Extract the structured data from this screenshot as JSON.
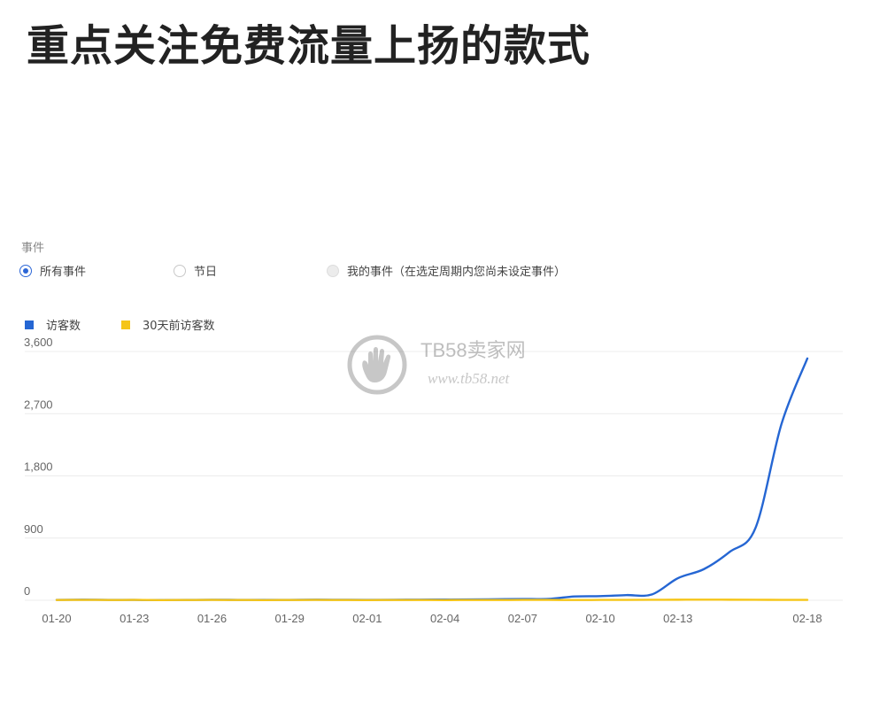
{
  "title": "重点关注免费流量上扬的款式",
  "filter": {
    "label": "事件",
    "options": [
      {
        "label": "所有事件",
        "state": "checked"
      },
      {
        "label": "节日",
        "state": "unchecked"
      },
      {
        "label": "我的事件（在选定周期内您尚未设定事件）",
        "state": "disabled"
      }
    ]
  },
  "watermark": {
    "brand": "TB58卖家网",
    "url": "www.tb58.net"
  },
  "colors": {
    "visitors": "#2566d3",
    "visitors_30d": "#f5c518",
    "grid": "#ececec",
    "axis_text": "#666666"
  },
  "chart_data": {
    "type": "line",
    "title": "",
    "xlabel": "",
    "ylabel": "",
    "ylim": [
      0,
      3600
    ],
    "yticks": [
      0,
      900,
      1800,
      2700,
      3600
    ],
    "ytick_labels": [
      "0",
      "900",
      "1,800",
      "2,700",
      "3,600"
    ],
    "x": [
      "01-20",
      "01-21",
      "01-22",
      "01-23",
      "01-24",
      "01-25",
      "01-26",
      "01-27",
      "01-28",
      "01-29",
      "01-30",
      "01-31",
      "02-01",
      "02-02",
      "02-03",
      "02-04",
      "02-05",
      "02-06",
      "02-07",
      "02-08",
      "02-09",
      "02-10",
      "02-11",
      "02-12",
      "02-13",
      "02-14",
      "02-15",
      "02-16",
      "02-17",
      "02-18"
    ],
    "xtick_labels": [
      "01-20",
      "01-23",
      "01-26",
      "01-29",
      "02-01",
      "02-04",
      "02-07",
      "02-10",
      "02-13",
      "02-18"
    ],
    "legend_position": "top-left",
    "series": [
      {
        "name": "访客数",
        "values": [
          5,
          8,
          6,
          5,
          4,
          5,
          7,
          6,
          5,
          6,
          8,
          7,
          6,
          7,
          9,
          10,
          12,
          15,
          18,
          20,
          55,
          60,
          75,
          85,
          320,
          450,
          700,
          1050,
          2550,
          3500
        ]
      },
      {
        "name": "30天前访客数",
        "values": [
          4,
          6,
          4,
          5,
          3,
          4,
          5,
          4,
          3,
          4,
          5,
          4,
          3,
          4,
          4,
          3,
          4,
          4,
          5,
          5,
          4,
          5,
          6,
          7,
          8,
          9,
          8,
          7,
          6,
          5
        ]
      }
    ]
  }
}
